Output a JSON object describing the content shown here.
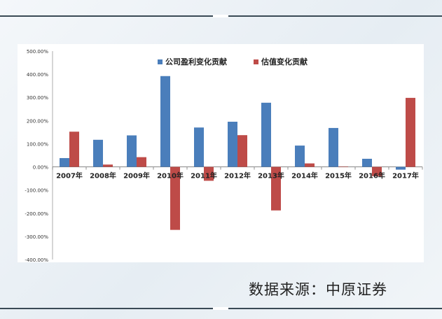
{
  "source_note": "数据来源：中原证券",
  "colors": {
    "series1": "#4a7ebb",
    "series2": "#be4b48"
  },
  "chart_data": {
    "type": "bar",
    "categories": [
      "2007年",
      "2008年",
      "2009年",
      "2010年",
      "2011年",
      "2012年",
      "2013年",
      "2014年",
      "2015年",
      "2016年",
      "2017年"
    ],
    "series": [
      {
        "name": "公司盈利变化贡献",
        "values": [
          38,
          117,
          136,
          392,
          170,
          195,
          277,
          92,
          168,
          35,
          -12
        ]
      },
      {
        "name": "估值变化贡献",
        "values": [
          152,
          10,
          42,
          -272,
          -60,
          137,
          -188,
          15,
          2,
          -40,
          298
        ]
      }
    ],
    "ylim": [
      -400,
      500
    ],
    "yticks": [
      500,
      400,
      300,
      200,
      100,
      0,
      -100,
      -200,
      -300,
      -400
    ],
    "ytick_labels": [
      "500.00%",
      "400.00%",
      "300.00%",
      "200.00%",
      "100.00%",
      "0.00%",
      "-100.00%",
      "-200.00%",
      "-300.00%",
      "-400.00%"
    ],
    "legend_position": "top",
    "grid": false
  }
}
